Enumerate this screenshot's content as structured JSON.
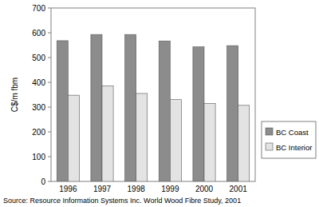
{
  "chart_data": {
    "type": "bar",
    "y_label": "C$/m fbm",
    "source": "Source: Resource Information Systems Inc.  World Wood Fibre Study, 2001",
    "categories": [
      "1996",
      "1997",
      "1998",
      "1999",
      "2000",
      "2001"
    ],
    "series": [
      {
        "name": "BC Coast",
        "color": "#8c8c8c",
        "values": [
          568,
          593,
          593,
          567,
          543,
          548
        ]
      },
      {
        "name": "BC Interior",
        "color": "#e3e3e3",
        "values": [
          348,
          385,
          355,
          330,
          315,
          307
        ]
      }
    ],
    "ylim": [
      0,
      700
    ],
    "yticks": [
      0,
      100,
      200,
      300,
      400,
      500,
      600,
      700
    ],
    "grid": false,
    "legend": "right"
  }
}
